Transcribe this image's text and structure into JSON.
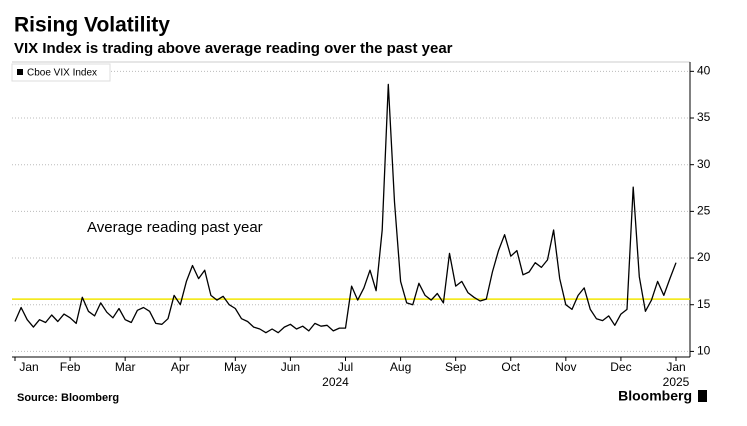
{
  "chart_data": {
    "type": "line",
    "title": "Rising Volatility",
    "subtitle": "VIX Index is trading above average reading over the past year",
    "source": "Source: Bloomberg",
    "brand": "Bloomberg",
    "categories": [
      "Jan",
      null,
      null,
      null,
      null,
      null,
      null,
      null,
      null,
      "Feb",
      null,
      null,
      null,
      null,
      null,
      null,
      null,
      null,
      "Mar",
      null,
      null,
      null,
      null,
      null,
      null,
      null,
      null,
      "Apr",
      null,
      null,
      null,
      null,
      null,
      null,
      null,
      null,
      "May",
      null,
      null,
      null,
      null,
      null,
      null,
      null,
      null,
      "Jun",
      null,
      null,
      null,
      null,
      null,
      null,
      null,
      null,
      "Jul",
      null,
      null,
      null,
      null,
      null,
      null,
      null,
      null,
      "Aug",
      null,
      null,
      null,
      null,
      null,
      null,
      null,
      null,
      "Sep",
      null,
      null,
      null,
      null,
      null,
      null,
      null,
      null,
      "Oct",
      null,
      null,
      null,
      null,
      null,
      null,
      null,
      null,
      "Nov",
      null,
      null,
      null,
      null,
      null,
      null,
      null,
      null,
      "Dec",
      null,
      null,
      null,
      null,
      null,
      null,
      null,
      null,
      "Jan"
    ],
    "year_labels": [
      "2024",
      "2025"
    ],
    "series": [
      {
        "name": "Cboe VIX Index",
        "color": "#000000",
        "values": [
          13.2,
          14.7,
          13.4,
          12.6,
          13.4,
          13.1,
          13.9,
          13.2,
          14.0,
          13.6,
          13.0,
          15.8,
          14.3,
          13.8,
          15.2,
          14.2,
          13.6,
          14.6,
          13.4,
          13.1,
          14.4,
          14.7,
          14.3,
          13.0,
          12.9,
          13.5,
          16.0,
          15.0,
          17.5,
          19.2,
          17.8,
          18.7,
          16.0,
          15.5,
          15.9,
          15.0,
          14.6,
          13.5,
          13.2,
          12.6,
          12.4,
          12.0,
          12.4,
          12.0,
          12.6,
          12.9,
          12.4,
          12.7,
          12.2,
          13.0,
          12.7,
          12.8,
          12.2,
          12.5,
          12.5,
          17.0,
          15.5,
          16.8,
          18.7,
          16.5,
          23.0,
          38.6,
          26.0,
          17.5,
          15.2,
          15.0,
          17.3,
          16.0,
          15.5,
          16.2,
          15.2,
          20.5,
          17.0,
          17.5,
          16.3,
          15.8,
          15.4,
          15.6,
          18.5,
          20.8,
          22.5,
          20.2,
          20.8,
          18.2,
          18.5,
          19.5,
          19.0,
          19.8,
          23.0,
          17.8,
          15.0,
          14.5,
          16.0,
          16.8,
          14.5,
          13.5,
          13.3,
          13.8,
          12.8,
          14.0,
          14.5,
          27.6,
          18.0,
          14.3,
          15.5,
          17.5,
          16.0,
          17.8,
          19.5
        ]
      }
    ],
    "average": {
      "value": 15.6,
      "label": "Average reading past year",
      "color": "#f2e600"
    },
    "ylim": [
      9.4,
      41
    ],
    "yticks": [
      10,
      15,
      20,
      25,
      30,
      35,
      40
    ],
    "grid": true
  }
}
